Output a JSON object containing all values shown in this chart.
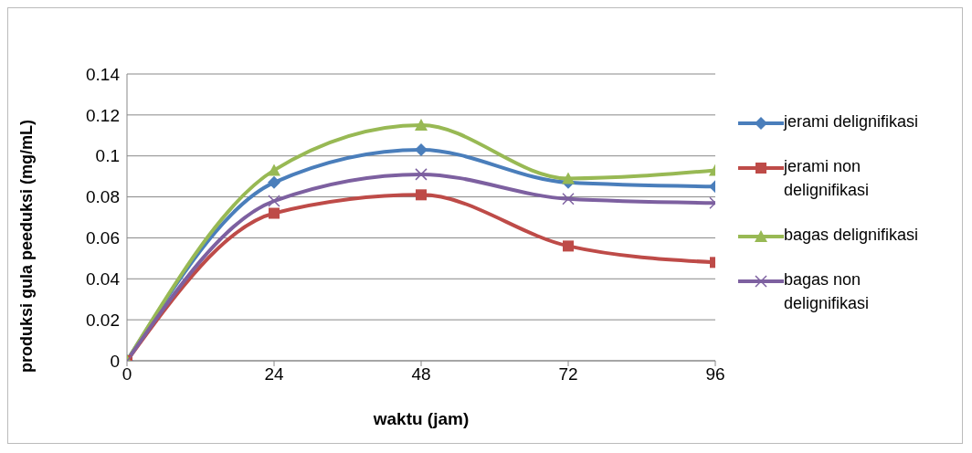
{
  "chart_data": {
    "type": "line",
    "xlabel": "waktu (jam)",
    "ylabel": "produksi gula peeduksi (mg/mL)",
    "x": [
      0,
      24,
      48,
      72,
      96
    ],
    "xlim": [
      0,
      96
    ],
    "xticks": [
      0,
      24,
      48,
      72,
      96
    ],
    "ylim": [
      0,
      0.14
    ],
    "yticks": [
      0,
      0.02,
      0.04,
      0.06,
      0.08,
      0.1,
      0.12,
      0.14
    ],
    "grid": "y",
    "legend": "right",
    "series": [
      {
        "name": "jerami delignifikasi",
        "color": "#4a7ebb",
        "marker": "diamond",
        "values": [
          0,
          0.087,
          0.103,
          0.087,
          0.085
        ]
      },
      {
        "name": "jerami non delignifikasi",
        "color": "#be4b48",
        "marker": "square",
        "values": [
          0,
          0.072,
          0.081,
          0.056,
          0.048
        ]
      },
      {
        "name": "bagas delignifikasi",
        "color": "#98b954",
        "marker": "triangle",
        "values": [
          0,
          0.093,
          0.115,
          0.089,
          0.093
        ]
      },
      {
        "name": "bagas non delignifikasi",
        "color": "#7d60a0",
        "marker": "cross",
        "values": [
          0,
          0.078,
          0.091,
          0.079,
          0.077
        ]
      }
    ]
  }
}
